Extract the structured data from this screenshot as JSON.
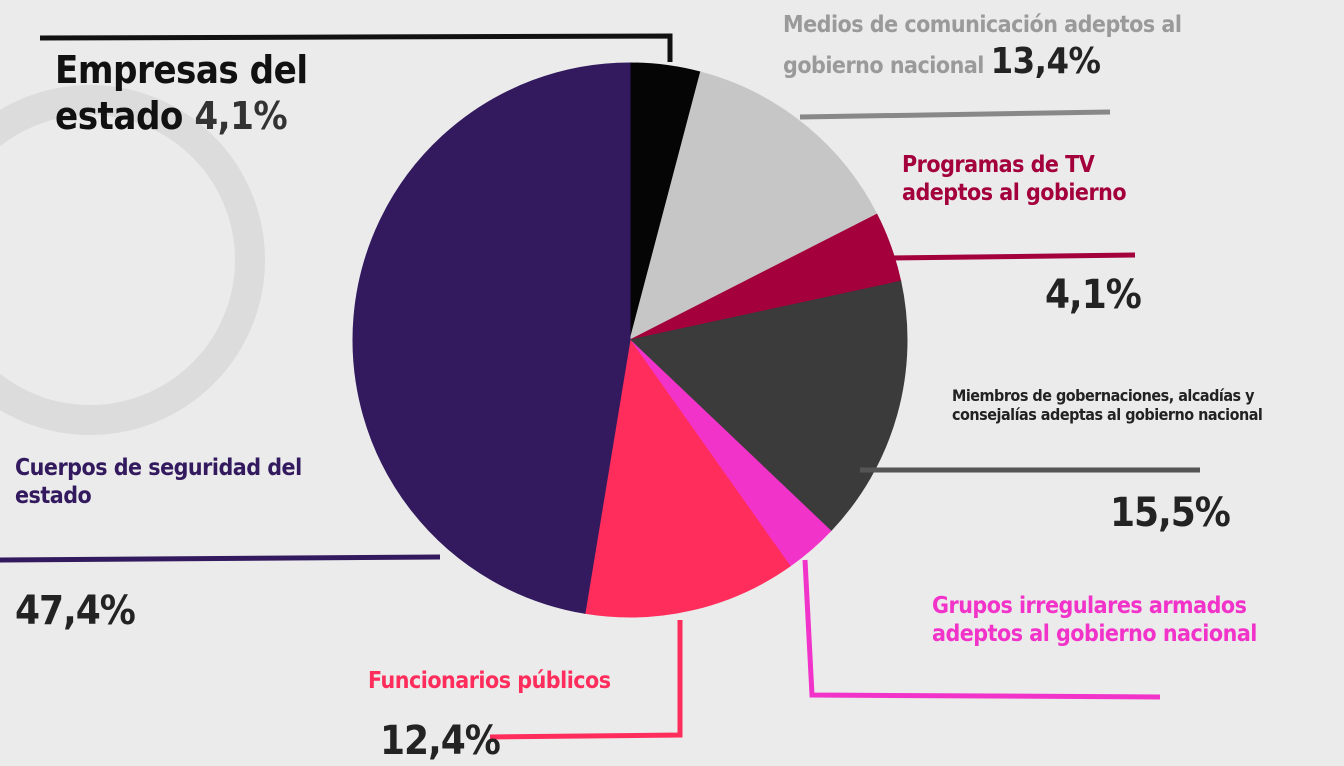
{
  "chart_data": {
    "type": "pie",
    "categories": [
      "Empresas del estado",
      "Medios de comunicación adeptos al gobierno nacional",
      "Programas de TV adeptos al gobierno",
      "Miembros de gobernaciones, alcadías y consejalías adeptas al gobierno nacional",
      "Grupos irregulares armados adeptos al gobierno nacional",
      "Funcionarios públicos",
      "Cuerpos de seguridad del estado"
    ],
    "values": [
      4.1,
      13.4,
      4.1,
      15.5,
      3.1,
      12.4,
      47.4
    ],
    "value_labels": [
      "4,1%",
      "13,4%",
      "4,1%",
      "15,5%",
      null,
      "12,4%",
      "47,4%"
    ],
    "colors": [
      "#050505",
      "#c6c6c6",
      "#a3003c",
      "#3b3b3b",
      "#f233c9",
      "#ff2d5c",
      "#331a5e"
    ]
  }
}
